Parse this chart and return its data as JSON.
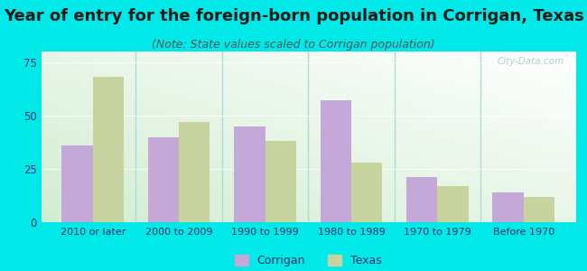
{
  "title": "Year of entry for the foreign-born population in Corrigan, Texas",
  "subtitle": "(Note: State values scaled to Corrigan population)",
  "categories": [
    "2010 or later",
    "2000 to 2009",
    "1990 to 1999",
    "1980 to 1989",
    "1970 to 1979",
    "Before 1970"
  ],
  "corrigan_values": [
    36,
    40,
    45,
    57,
    21,
    14
  ],
  "texas_values": [
    68,
    47,
    38,
    28,
    17,
    12
  ],
  "corrigan_color": "#c4a8d8",
  "texas_color": "#c8d4a0",
  "background_color": "#00e8e8",
  "plot_bg_top": "#ffffff",
  "plot_bg_bottom": "#d4ecd4",
  "title_fontsize": 13,
  "subtitle_fontsize": 9,
  "ylim": [
    0,
    80
  ],
  "yticks": [
    0,
    25,
    50,
    75
  ],
  "bar_width": 0.36,
  "legend_labels": [
    "Corrigan",
    "Texas"
  ],
  "title_color": "#1a1a1a",
  "subtitle_color": "#555555",
  "tick_label_color": "#333366",
  "separator_color": "#aadddd",
  "watermark_color": "#aacccc"
}
